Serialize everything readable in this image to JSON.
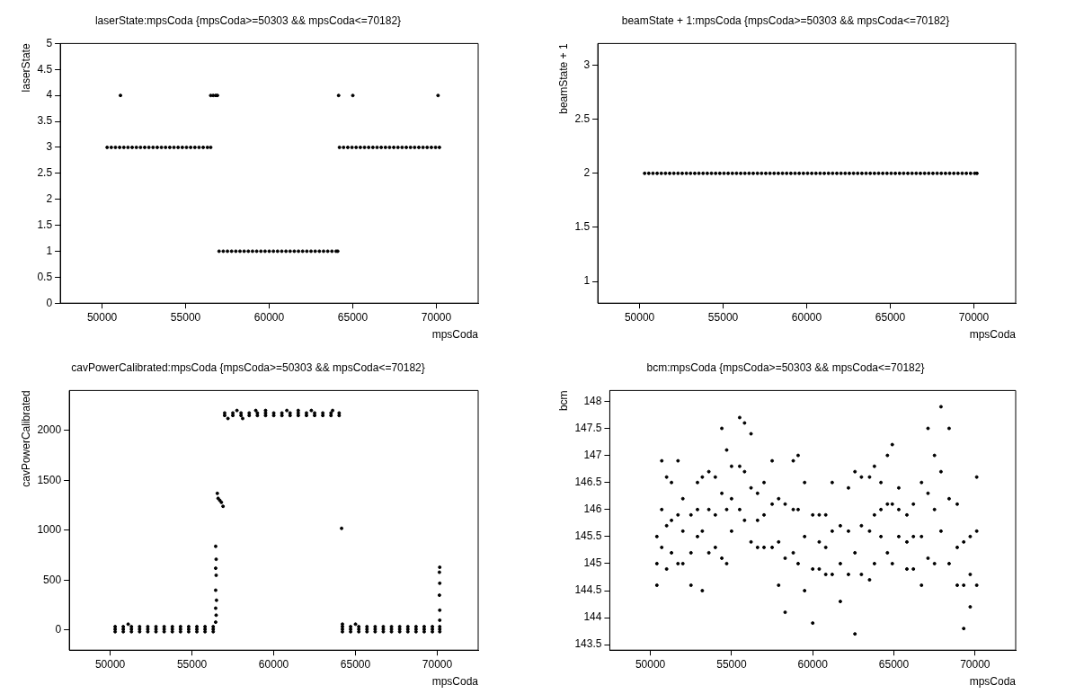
{
  "chart_data": [
    {
      "type": "scatter",
      "title": "laserState:mpsCoda {mpsCoda>=50303 && mpsCoda<=70182}",
      "xlabel": "mpsCoda",
      "ylabel": "laserState",
      "color": "#000000",
      "marker": "circle",
      "xlim": [
        47500,
        72500
      ],
      "xticks": [
        50000,
        55000,
        60000,
        65000,
        70000
      ],
      "ylim": [
        0,
        5
      ],
      "yticks": [
        0,
        0.5,
        1,
        1.5,
        2,
        2.5,
        3,
        3.5,
        4,
        4.5,
        5
      ],
      "x": [
        50303,
        50550,
        50800,
        51050,
        51300,
        51550,
        51800,
        52050,
        52300,
        52550,
        52800,
        53050,
        53300,
        53550,
        53800,
        54050,
        54300,
        54550,
        54800,
        55050,
        55300,
        55550,
        55800,
        56050,
        56300,
        56500,
        57000,
        57250,
        57500,
        57750,
        58000,
        58250,
        58500,
        58750,
        59000,
        59250,
        59500,
        59750,
        60000,
        60250,
        60500,
        60750,
        61000,
        61250,
        61500,
        61750,
        62000,
        62250,
        62500,
        62750,
        63000,
        63250,
        63500,
        63750,
        64000,
        64100,
        64200,
        64450,
        64700,
        64950,
        65200,
        65450,
        65700,
        65950,
        66200,
        66450,
        66700,
        66950,
        67200,
        67450,
        67700,
        67950,
        68200,
        68450,
        68700,
        68950,
        69200,
        69450,
        69700,
        69950,
        70182,
        51100,
        56500,
        56650,
        56800,
        56900,
        64150,
        65000,
        70100
      ],
      "values": [
        3,
        3,
        3,
        3,
        3,
        3,
        3,
        3,
        3,
        3,
        3,
        3,
        3,
        3,
        3,
        3,
        3,
        3,
        3,
        3,
        3,
        3,
        3,
        3,
        3,
        3,
        1,
        1,
        1,
        1,
        1,
        1,
        1,
        1,
        1,
        1,
        1,
        1,
        1,
        1,
        1,
        1,
        1,
        1,
        1,
        1,
        1,
        1,
        1,
        1,
        1,
        1,
        1,
        1,
        1,
        1,
        3,
        3,
        3,
        3,
        3,
        3,
        3,
        3,
        3,
        3,
        3,
        3,
        3,
        3,
        3,
        3,
        3,
        3,
        3,
        3,
        3,
        3,
        3,
        3,
        3,
        4,
        4,
        4,
        4,
        4,
        4,
        4,
        4
      ]
    },
    {
      "type": "scatter",
      "title": "beamState + 1:mpsCoda {mpsCoda>=50303 && mpsCoda<=70182}",
      "xlabel": "mpsCoda",
      "ylabel": "beamState + 1",
      "color": "#000000",
      "marker": "circle",
      "xlim": [
        47500,
        72500
      ],
      "xticks": [
        50000,
        55000,
        60000,
        65000,
        70000
      ],
      "ylim": [
        0.8,
        3.2
      ],
      "yticks": [
        1,
        1.5,
        2,
        2.5,
        3
      ],
      "x": [
        50303,
        50550,
        50800,
        51050,
        51300,
        51550,
        51800,
        52050,
        52300,
        52550,
        52800,
        53050,
        53300,
        53550,
        53800,
        54050,
        54300,
        54550,
        54800,
        55050,
        55300,
        55550,
        55800,
        56050,
        56300,
        56550,
        56800,
        57050,
        57300,
        57550,
        57800,
        58050,
        58300,
        58550,
        58800,
        59050,
        59300,
        59550,
        59800,
        60050,
        60300,
        60550,
        60800,
        61050,
        61300,
        61550,
        61800,
        62050,
        62300,
        62550,
        62800,
        63050,
        63300,
        63550,
        63800,
        64050,
        64300,
        64550,
        64800,
        65050,
        65300,
        65550,
        65800,
        66050,
        66300,
        66550,
        66800,
        67050,
        67300,
        67550,
        67800,
        68050,
        68300,
        68550,
        68800,
        69050,
        69300,
        69550,
        69800,
        70050,
        70182
      ],
      "values": [
        2,
        2,
        2,
        2,
        2,
        2,
        2,
        2,
        2,
        2,
        2,
        2,
        2,
        2,
        2,
        2,
        2,
        2,
        2,
        2,
        2,
        2,
        2,
        2,
        2,
        2,
        2,
        2,
        2,
        2,
        2,
        2,
        2,
        2,
        2,
        2,
        2,
        2,
        2,
        2,
        2,
        2,
        2,
        2,
        2,
        2,
        2,
        2,
        2,
        2,
        2,
        2,
        2,
        2,
        2,
        2,
        2,
        2,
        2,
        2,
        2,
        2,
        2,
        2,
        2,
        2,
        2,
        2,
        2,
        2,
        2,
        2,
        2,
        2,
        2,
        2,
        2,
        2,
        2,
        2,
        2
      ]
    },
    {
      "type": "scatter",
      "title": "cavPowerCalibrated:mpsCoda {mpsCoda>=50303 && mpsCoda<=70182}",
      "xlabel": "mpsCoda",
      "ylabel": "cavPowerCalibrated",
      "color": "#000000",
      "marker": "circle",
      "xlim": [
        47500,
        72500
      ],
      "xticks": [
        50000,
        55000,
        60000,
        65000,
        70000
      ],
      "ylim": [
        -200,
        2400
      ],
      "yticks": [
        0,
        500,
        1000,
        1500,
        2000
      ],
      "x": [
        50303,
        50800,
        51300,
        51800,
        52300,
        52800,
        53300,
        53800,
        54300,
        54800,
        55300,
        55800,
        56300,
        50303,
        50800,
        51300,
        51800,
        52300,
        52800,
        53300,
        53800,
        54300,
        54800,
        55300,
        55800,
        56300,
        50303,
        50800,
        51300,
        51800,
        52300,
        52800,
        53300,
        53800,
        54300,
        54800,
        55300,
        55800,
        56300,
        64200,
        64700,
        65200,
        65700,
        66200,
        66700,
        67200,
        67700,
        68200,
        68700,
        69200,
        69700,
        70150,
        64200,
        64700,
        65200,
        65700,
        66200,
        66700,
        67200,
        67700,
        68200,
        68700,
        69200,
        69700,
        70150,
        64200,
        64700,
        65200,
        65700,
        66200,
        66700,
        67200,
        67700,
        68200,
        68700,
        69200,
        69700,
        70150,
        57000,
        57500,
        58000,
        58500,
        59000,
        59500,
        60000,
        60500,
        61000,
        61500,
        62000,
        62500,
        63000,
        63500,
        64000,
        57000,
        57500,
        58000,
        58500,
        59000,
        59500,
        60000,
        60500,
        61000,
        61500,
        62000,
        62500,
        63000,
        63500,
        64000,
        57750,
        58900,
        59500,
        60800,
        61500,
        62300,
        63600,
        57200,
        58100,
        51100,
        64200,
        65000,
        56450,
        56480,
        56450,
        56480,
        56450,
        56500,
        56450,
        56480,
        56450,
        56550,
        56600,
        56700,
        56800,
        56900,
        64150,
        70150,
        70130,
        70150,
        70130,
        70150,
        70150
      ],
      "values": [
        35,
        35,
        35,
        35,
        35,
        35,
        35,
        35,
        35,
        35,
        35,
        35,
        35,
        10,
        10,
        10,
        10,
        10,
        10,
        10,
        10,
        10,
        10,
        10,
        10,
        10,
        -15,
        -15,
        -15,
        -15,
        -15,
        -15,
        -15,
        -15,
        -15,
        -15,
        -15,
        -15,
        -15,
        35,
        35,
        35,
        35,
        35,
        35,
        35,
        35,
        35,
        35,
        35,
        35,
        35,
        10,
        10,
        10,
        10,
        10,
        10,
        10,
        10,
        10,
        10,
        10,
        10,
        10,
        -15,
        -15,
        -15,
        -15,
        -15,
        -15,
        -15,
        -15,
        -15,
        -15,
        -15,
        -15,
        -15,
        2175,
        2175,
        2175,
        2175,
        2175,
        2175,
        2175,
        2175,
        2175,
        2175,
        2175,
        2175,
        2175,
        2175,
        2175,
        2150,
        2150,
        2150,
        2150,
        2150,
        2150,
        2150,
        2150,
        2150,
        2150,
        2150,
        2150,
        2150,
        2150,
        2150,
        2200,
        2200,
        2200,
        2200,
        2200,
        2200,
        2200,
        2120,
        2120,
        60,
        60,
        60,
        840,
        710,
        620,
        550,
        400,
        300,
        220,
        150,
        80,
        1370,
        1320,
        1300,
        1280,
        1240,
        1020,
        630,
        580,
        470,
        350,
        200,
        100
      ]
    },
    {
      "type": "scatter",
      "title": "bcm:mpsCoda {mpsCoda>=50303 && mpsCoda<=70182}",
      "xlabel": "mpsCoda",
      "ylabel": "bcm",
      "color": "#000000",
      "marker": "circle",
      "xlim": [
        47500,
        72500
      ],
      "xticks": [
        50000,
        55000,
        60000,
        65000,
        70000
      ],
      "ylim": [
        143.4,
        148.2
      ],
      "yticks": [
        143.5,
        144,
        144.5,
        145,
        145.5,
        146,
        146.5,
        147,
        147.5,
        148
      ],
      "x": [
        50400,
        50400,
        50400,
        50700,
        50700,
        50700,
        51000,
        51000,
        51000,
        51300,
        51300,
        51300,
        51700,
        51700,
        51700,
        52000,
        52000,
        52000,
        52500,
        52500,
        52500,
        52900,
        52900,
        52900,
        53200,
        53200,
        53200,
        53600,
        53600,
        53600,
        54000,
        54000,
        54000,
        54400,
        54400,
        54400,
        54700,
        54700,
        54700,
        55000,
        55000,
        55000,
        55500,
        55500,
        55500,
        55800,
        55800,
        55800,
        56200,
        56200,
        56200,
        56600,
        56600,
        56600,
        57000,
        57000,
        57000,
        57500,
        57500,
        57500,
        57900,
        57900,
        57900,
        58300,
        58300,
        58300,
        58800,
        58800,
        58800,
        59100,
        59100,
        59100,
        59500,
        59500,
        59500,
        60000,
        60000,
        60000,
        60400,
        60400,
        60400,
        60800,
        60800,
        60800,
        61200,
        61200,
        61200,
        61700,
        61700,
        61700,
        62200,
        62200,
        62200,
        62600,
        62600,
        62600,
        63000,
        63000,
        63000,
        63500,
        63500,
        63500,
        63800,
        63800,
        63800,
        64200,
        64200,
        64200,
        64600,
        64600,
        64600,
        64900,
        64900,
        64900,
        65300,
        65300,
        65300,
        65800,
        65800,
        65800,
        66200,
        66200,
        66200,
        66700,
        66700,
        66700,
        67100,
        67100,
        67100,
        67500,
        67500,
        67500,
        67900,
        67900,
        67900,
        68400,
        68400,
        68400,
        68900,
        68900,
        68900,
        69300,
        69300,
        69300,
        69700,
        69700,
        69700,
        70100,
        70100,
        70100
      ],
      "values": [
        145.5,
        145.0,
        144.6,
        146.9,
        146.0,
        145.3,
        146.6,
        145.7,
        144.9,
        146.5,
        145.8,
        145.2,
        146.9,
        145.9,
        145.0,
        146.2,
        145.6,
        145.0,
        145.9,
        145.2,
        144.6,
        146.5,
        146.0,
        145.5,
        146.6,
        145.6,
        144.5,
        146.7,
        146.0,
        145.2,
        146.6,
        145.9,
        145.3,
        147.5,
        146.3,
        145.1,
        147.1,
        146.0,
        145.0,
        146.8,
        146.2,
        145.6,
        147.7,
        146.8,
        146.0,
        147.6,
        146.7,
        145.8,
        147.4,
        146.4,
        145.4,
        146.3,
        145.8,
        145.3,
        146.5,
        145.9,
        145.3,
        146.9,
        146.1,
        145.3,
        146.2,
        145.4,
        144.6,
        146.1,
        145.1,
        144.1,
        146.9,
        146.0,
        145.2,
        147.0,
        146.0,
        145.0,
        146.5,
        145.5,
        144.5,
        145.9,
        144.9,
        143.9,
        145.9,
        145.4,
        144.9,
        145.9,
        145.3,
        144.8,
        146.5,
        145.6,
        144.8,
        145.7,
        145.0,
        144.3,
        146.4,
        145.6,
        144.8,
        146.7,
        145.2,
        143.7,
        146.6,
        145.7,
        144.8,
        146.6,
        145.6,
        144.7,
        146.8,
        145.9,
        145.0,
        146.5,
        146.0,
        145.5,
        147.0,
        146.1,
        145.2,
        147.2,
        146.1,
        145.0,
        146.4,
        146.0,
        145.5,
        145.9,
        145.4,
        144.9,
        146.1,
        145.5,
        144.9,
        146.5,
        145.5,
        144.6,
        147.5,
        146.3,
        145.1,
        147.0,
        146.0,
        145.0,
        147.9,
        146.7,
        145.6,
        147.5,
        146.2,
        145.0,
        146.1,
        145.3,
        144.6,
        145.4,
        144.6,
        143.8,
        145.5,
        144.8,
        144.2,
        146.6,
        145.6,
        144.6
      ]
    }
  ]
}
